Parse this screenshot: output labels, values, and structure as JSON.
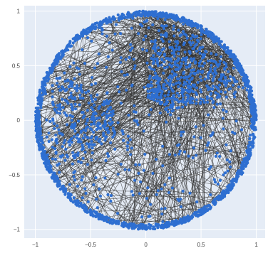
{
  "chart_data": {
    "type": "network",
    "title": "",
    "xlabel": "",
    "ylabel": "",
    "xlim": [
      -1.1,
      1.08
    ],
    "ylim": [
      -1.08,
      1.05
    ],
    "x_ticks": [
      -1,
      -0.5,
      0,
      0.5,
      1
    ],
    "x_tick_labels": [
      "−1",
      "−0.5",
      "0",
      "0.5",
      "1"
    ],
    "y_ticks": [
      1,
      0.5,
      0,
      -0.5,
      -1
    ],
    "y_tick_labels": [
      "1",
      "0.5",
      "0",
      "−0.5",
      "−1"
    ],
    "grid": true,
    "legend": "none",
    "circle": {
      "cx": 0,
      "cy": 0,
      "r": 1
    },
    "node_count": 2500,
    "edge_count": 700
  },
  "colors": {
    "plot_bg": "#e5ecf6",
    "gridline": "#ffffff",
    "node": "#2e6fd1",
    "edge": "#333333"
  }
}
